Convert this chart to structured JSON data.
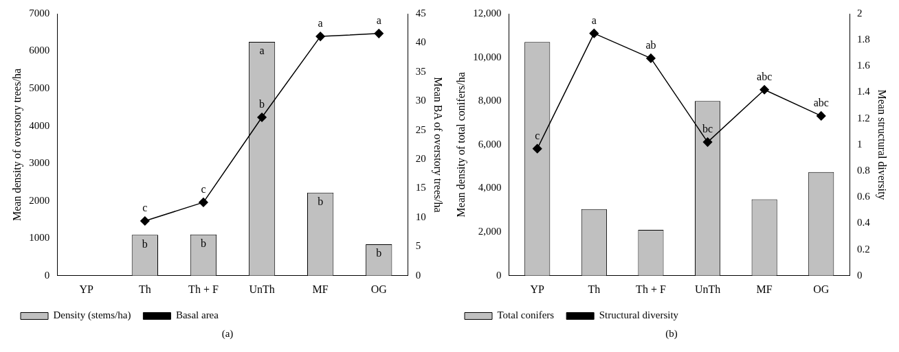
{
  "chart_data": [
    {
      "type": "bar",
      "categories": [
        "YP",
        "Th",
        "Th + F",
        "UnTh",
        "MF",
        "OG"
      ],
      "ylabel": "Mean density of overstory trees/ha",
      "y2label": "Mean BA of overstory trees/ha",
      "series": [
        {
          "name": "Density (stems/ha)",
          "color": "#c0c0c0",
          "values": [
            null,
            1090,
            1100,
            6250,
            2220,
            840
          ],
          "value_labels": [
            null,
            "b",
            "b",
            "a",
            "b",
            "b"
          ]
        },
        {
          "name": "Basal area",
          "type": "line",
          "axis": "y2",
          "color": "#000000",
          "values": [
            null,
            9.4,
            12.6,
            27.2,
            41.1,
            41.6
          ],
          "value_labels": [
            null,
            "c",
            "c",
            "b",
            "a",
            "a"
          ]
        }
      ],
      "ylim": [
        0,
        7000
      ],
      "yticks": [
        0,
        1000,
        2000,
        3000,
        4000,
        5000,
        6000,
        7000
      ],
      "y2lim": [
        0,
        45
      ],
      "y2ticks": [
        0,
        5,
        10,
        15,
        20,
        25,
        30,
        35,
        40,
        45
      ],
      "marker": "diamond",
      "legend": "bottom left",
      "grid": false,
      "annotations": [
        "(a)"
      ]
    },
    {
      "type": "bar",
      "categories": [
        "YP",
        "Th",
        "Th + F",
        "UnTh",
        "MF",
        "OG"
      ],
      "ylabel": "Mean density of total conifers/ha",
      "y2label": "Mean structural diversity",
      "series": [
        {
          "name": "Total conifers",
          "color": "#c0c0c0",
          "values": [
            10700,
            3050,
            2100,
            8000,
            3500,
            4750
          ]
        },
        {
          "name": "Structural diversity",
          "type": "line",
          "axis": "y2",
          "color": "#000000",
          "values": [
            0.97,
            1.85,
            1.66,
            1.02,
            1.42,
            1.22
          ],
          "value_labels": [
            "c",
            "a",
            "ab",
            "bc",
            "abc",
            "abc"
          ]
        }
      ],
      "ylim": [
        0,
        12000
      ],
      "yticks": [
        0,
        {
          "value": 2000,
          "label": "2,000"
        },
        {
          "value": 4000,
          "label": "4,000"
        },
        {
          "value": 6000,
          "label": "6,000"
        },
        {
          "value": 8000,
          "label": "8,000"
        },
        {
          "value": 10000,
          "label": "10,000"
        },
        {
          "value": 12000,
          "label": "12,000"
        }
      ],
      "y2lim": [
        0,
        2
      ],
      "y2ticks": [
        0,
        0.2,
        0.4,
        0.6,
        0.8,
        1,
        1.2,
        1.4,
        1.6,
        1.8,
        2
      ],
      "marker": "diamond",
      "legend": "bottom left",
      "grid": false,
      "annotations": [
        "(b)"
      ]
    }
  ]
}
